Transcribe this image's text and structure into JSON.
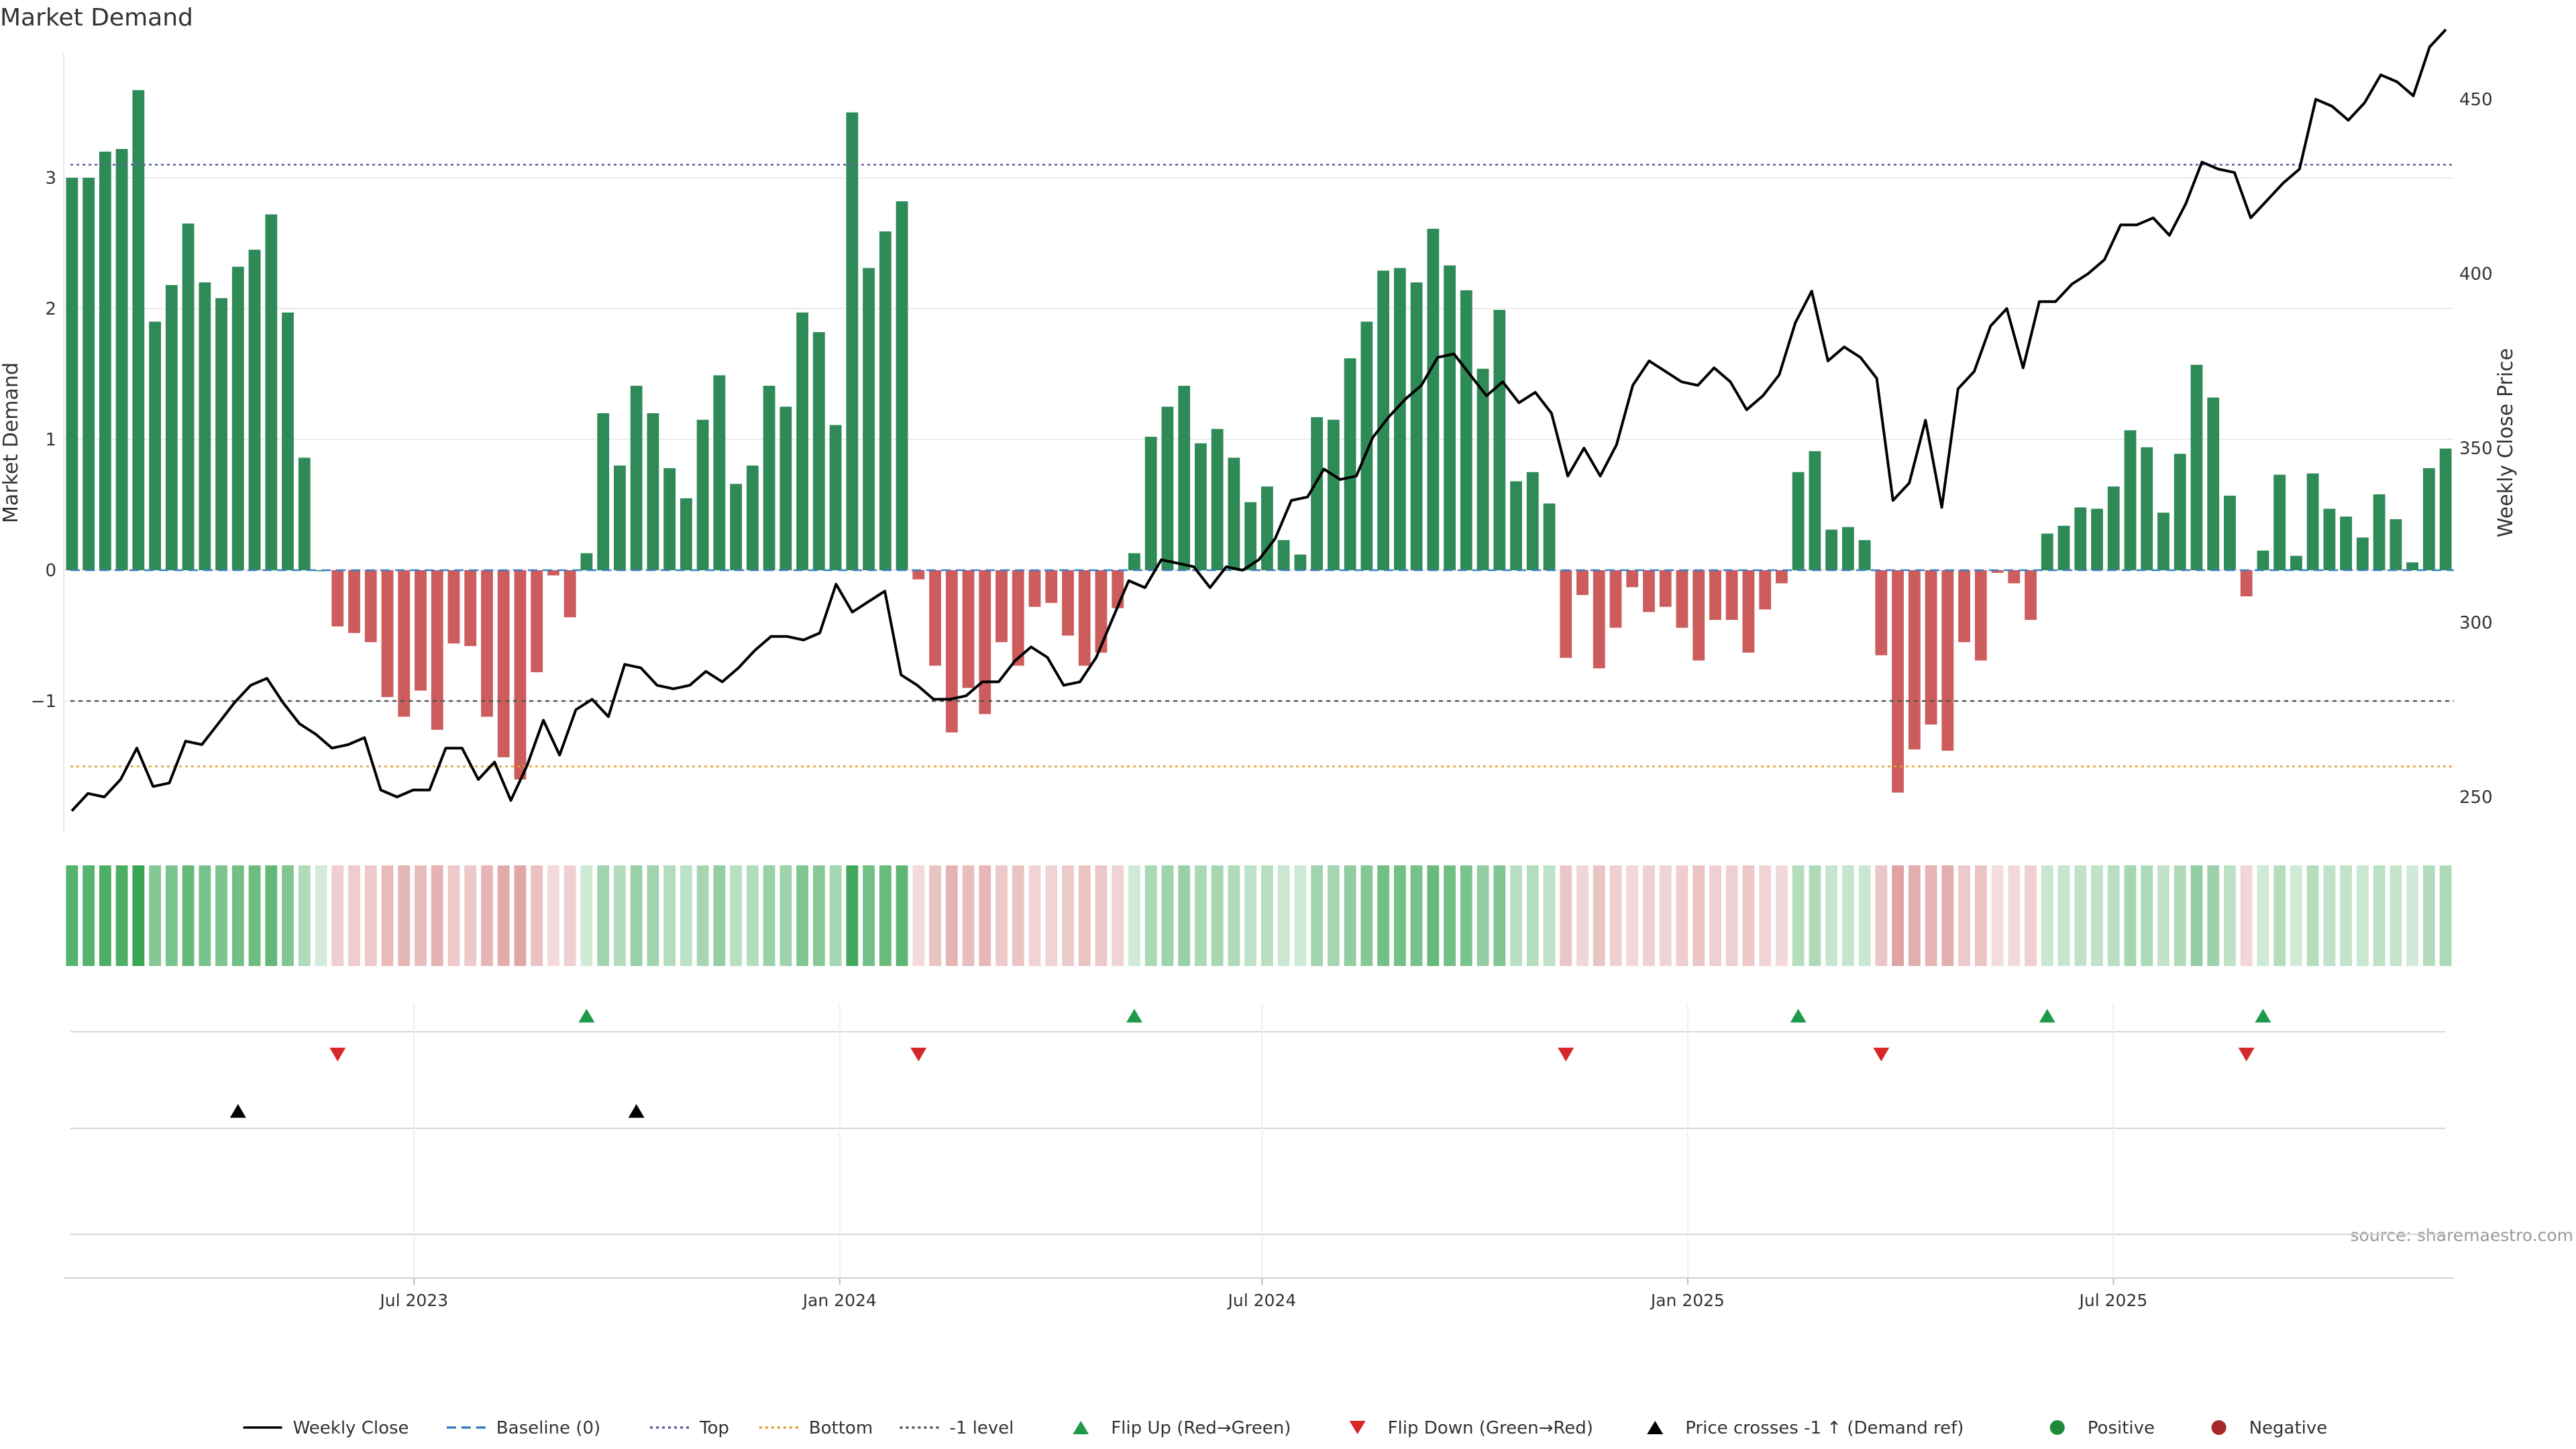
{
  "chart_data": {
    "type": "bar",
    "title": "Market Demand",
    "ylabel": "Market Demand",
    "y2label": "Weekly Close Price",
    "source": "source: sharemaestro.com",
    "ylim": [
      -2.0,
      4.0
    ],
    "y2lim": [
      240,
      465
    ],
    "yticks": [
      3,
      2,
      1,
      0,
      -1
    ],
    "ytick_labels": [
      "3",
      "2",
      "1",
      "0",
      "−1"
    ],
    "y2ticks": [
      450,
      400,
      350,
      300,
      250
    ],
    "y2tick_labels": [
      "450",
      "400",
      "350",
      "300",
      "250"
    ],
    "x_tick_positions": [
      21.4,
      47.4,
      73.2,
      99.2,
      125.2
    ],
    "x_tick_labels": [
      "Jul 2023",
      "Jan 2024",
      "Jul 2024",
      "Jan 2025",
      "Jul 2025"
    ],
    "reference_lines": {
      "baseline": 0,
      "top": 3.1,
      "bottom": -1.5,
      "minus_one": -1
    },
    "grid": "horizontal, light",
    "legend_position": "bottom-center",
    "demand": [
      3.0,
      3.0,
      3.2,
      3.22,
      3.67,
      1.9,
      2.18,
      2.65,
      2.2,
      2.08,
      2.32,
      2.45,
      2.72,
      1.97,
      0.86,
      0.0,
      -0.43,
      -0.48,
      -0.55,
      -0.97,
      -1.12,
      -0.92,
      -1.22,
      -0.56,
      -0.58,
      -1.12,
      -1.43,
      -1.6,
      -0.78,
      -0.04,
      -0.36,
      0.13,
      1.2,
      0.8,
      1.41,
      1.2,
      0.78,
      0.55,
      1.15,
      1.49,
      0.66,
      0.8,
      1.41,
      1.25,
      1.97,
      1.82,
      1.11,
      3.5,
      2.31,
      2.59,
      2.82,
      -0.07,
      -0.73,
      -1.24,
      -0.9,
      -1.1,
      -0.55,
      -0.73,
      -0.28,
      -0.25,
      -0.5,
      -0.73,
      -0.63,
      -0.29,
      0.13,
      1.02,
      1.25,
      1.41,
      0.97,
      1.08,
      0.86,
      0.52,
      0.64,
      0.23,
      0.12,
      1.17,
      1.15,
      1.62,
      1.9,
      2.29,
      2.31,
      2.2,
      2.61,
      2.33,
      2.14,
      1.54,
      1.99,
      0.68,
      0.75,
      0.51,
      -0.67,
      -0.19,
      -0.75,
      -0.44,
      -0.13,
      -0.32,
      -0.28,
      -0.44,
      -0.69,
      -0.38,
      -0.38,
      -0.63,
      -0.3,
      -0.1,
      0.75,
      0.91,
      0.31,
      0.33,
      0.23,
      -0.65,
      -1.7,
      -1.37,
      -1.18,
      -1.38,
      -0.55,
      -0.69,
      -0.02,
      -0.1,
      -0.38,
      0.28,
      0.34,
      0.48,
      0.47,
      0.64,
      1.07,
      0.94,
      0.44,
      0.89,
      1.57,
      1.32,
      0.57,
      -0.2,
      0.15,
      0.73,
      0.11,
      0.74,
      0.47,
      0.41,
      0.25,
      0.58,
      0.39,
      0.06,
      0.78,
      0.93
    ],
    "close": [
      246,
      251,
      250,
      255,
      264,
      253,
      254,
      266,
      265,
      271,
      277,
      282,
      284,
      277,
      271,
      268,
      264,
      265,
      267,
      252,
      250,
      252,
      252,
      264,
      264,
      255,
      260,
      249,
      259,
      272,
      262,
      275,
      278,
      273,
      288,
      287,
      282,
      281,
      282,
      286,
      283,
      287,
      292,
      296,
      296,
      295,
      297,
      311,
      303,
      306,
      309,
      285,
      282,
      278,
      278,
      279,
      283,
      283,
      289,
      293,
      290,
      282,
      283,
      290,
      301,
      312,
      310,
      318,
      317,
      316,
      310,
      316,
      315,
      318,
      324,
      335,
      336,
      344,
      341,
      342,
      353,
      359,
      364,
      368,
      376,
      377,
      371,
      365,
      369,
      363,
      366,
      360,
      342,
      350,
      342,
      351,
      368,
      375,
      372,
      369,
      368,
      373,
      369,
      361,
      365,
      371,
      386,
      395,
      375,
      379,
      376,
      370,
      335,
      340,
      358,
      333,
      367,
      372,
      385,
      390,
      373,
      392,
      392,
      397,
      400,
      404,
      414,
      414,
      416,
      411,
      420,
      432,
      430,
      429,
      416,
      421,
      426,
      430,
      450,
      448,
      444,
      449,
      457,
      455,
      451,
      465,
      470
    ],
    "flip_up": [
      31,
      64,
      104,
      119,
      132
    ],
    "flip_down": [
      16,
      51,
      90,
      109,
      131
    ],
    "price_cross_up": [
      10,
      34
    ]
  },
  "legend": [
    {
      "label": "Weekly Close",
      "icon": "line-solid",
      "color": "#000000"
    },
    {
      "label": "Baseline (0)",
      "icon": "line-dashed",
      "color": "#3a7fc0"
    },
    {
      "label": "Top",
      "icon": "line-dotted",
      "color": "#5c5c9e"
    },
    {
      "label": "Bottom",
      "icon": "line-dotted",
      "color": "#e0a030"
    },
    {
      "label": "-1 level",
      "icon": "line-dotted",
      "color": "#555555"
    },
    {
      "label": "Flip Up (Red→Green)",
      "icon": "triangle-up",
      "color": "#1e9a4a"
    },
    {
      "label": "Flip Down (Green→Red)",
      "icon": "triangle-down",
      "color": "#d62728"
    },
    {
      "label": "Price crosses -1 ↑ (Demand ref)",
      "icon": "triangle-up",
      "color": "#000000"
    },
    {
      "label": "Positive",
      "icon": "circle",
      "color": "#1f8a3a"
    },
    {
      "label": "Negative",
      "icon": "circle",
      "color": "#a82828"
    }
  ],
  "colors": {
    "positive_bar": "#2e8b57",
    "negative_bar": "#cd5c5c",
    "price_line": "#000000",
    "strip_positive": "#3aa655",
    "strip_negative": "#c96060"
  }
}
